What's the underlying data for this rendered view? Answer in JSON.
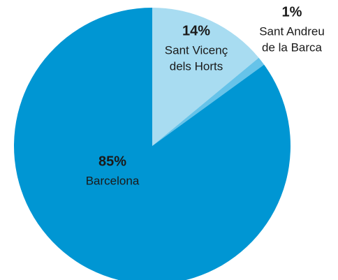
{
  "chart_data": {
    "type": "pie",
    "categories": [
      [
        "Sant Vicenç",
        "dels Horts"
      ],
      [
        "Sant Andreu",
        "de la Barca"
      ],
      [
        "Barcelona"
      ]
    ],
    "values": [
      14,
      1,
      85
    ],
    "value_labels": [
      "14%",
      "1%",
      "85%"
    ],
    "colors": [
      "#a8dcf1",
      "#66c3e9",
      "#0096d3"
    ]
  }
}
